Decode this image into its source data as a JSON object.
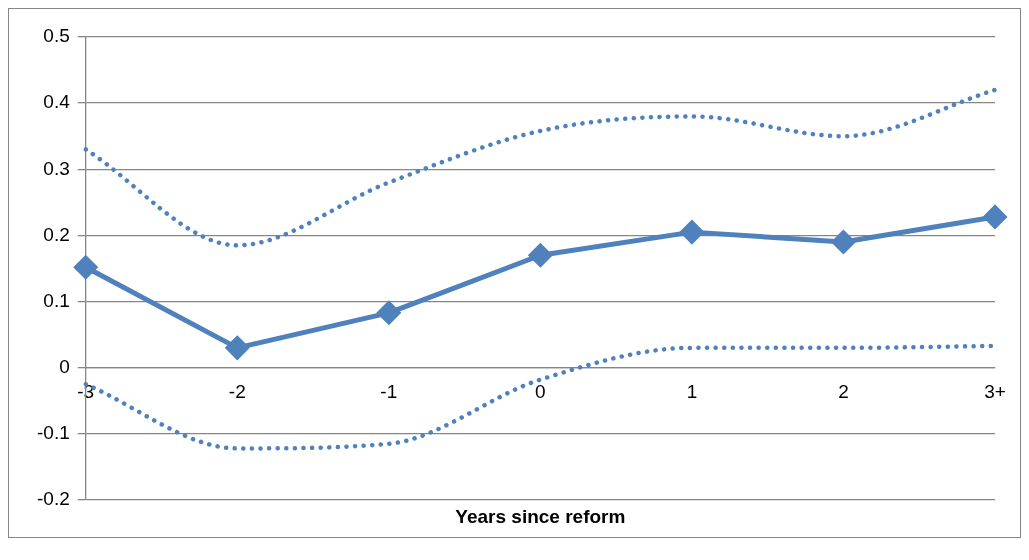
{
  "chart_data": {
    "type": "line",
    "xlabel": "Years since reform",
    "categories": [
      "-3",
      "-2",
      "-1",
      "0",
      "1",
      "2",
      "3+"
    ],
    "series": [
      {
        "color": "#4f81bd",
        "marker": "diamond",
        "line_style": "solid",
        "values": [
          0.152,
          0.03,
          0.083,
          0.17,
          0.205,
          0.19,
          0.228
        ]
      },
      {
        "color": "#4f81bd",
        "marker": "none",
        "line_style": "dotted",
        "values": [
          0.33,
          0.185,
          0.28,
          0.358,
          0.38,
          0.35,
          0.42
        ]
      },
      {
        "color": "#4f81bd",
        "marker": "none",
        "line_style": "dotted",
        "values": [
          -0.025,
          -0.122,
          -0.115,
          -0.018,
          0.03,
          0.03,
          0.033
        ]
      }
    ],
    "ylim": [
      -0.2,
      0.5
    ],
    "yticks": [
      -0.2,
      -0.1,
      0,
      0.1,
      0.2,
      0.3,
      0.4,
      0.5
    ],
    "grid": "y",
    "legend": false
  }
}
